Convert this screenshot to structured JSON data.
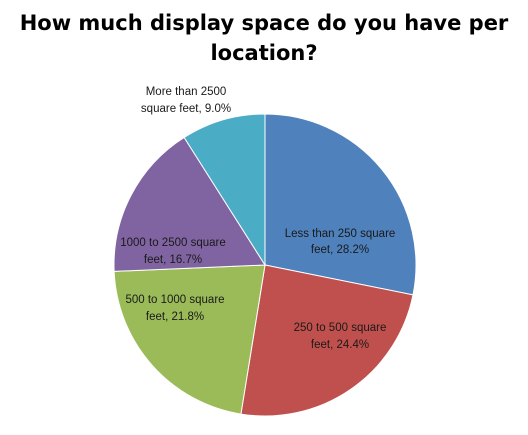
{
  "chart_data": {
    "type": "pie",
    "title": "How much display space do you have per\nlocation?",
    "slices": [
      {
        "name": "Less than 250 square feet",
        "value": 28.2,
        "label_lines": [
          "Less than 250 square",
          "feet, 28.2%"
        ],
        "color": "#4f81bd"
      },
      {
        "name": "250 to 500 square feet",
        "value": 24.4,
        "label_lines": [
          "250 to 500 square",
          "feet, 24.4%"
        ],
        "color": "#c0504d"
      },
      {
        "name": "500 to 1000 square feet",
        "value": 21.8,
        "label_lines": [
          "500 to 1000 square",
          "feet, 21.8%"
        ],
        "color": "#9bbb59"
      },
      {
        "name": "1000 to 2500 square feet",
        "value": 16.7,
        "label_lines": [
          "1000 to 2500 square",
          "feet, 16.7%"
        ],
        "color": "#8064a2"
      },
      {
        "name": "More than 2500 square feet",
        "value": 9.0,
        "label_lines": [
          "More than 2500",
          "square feet, 9.0%"
        ],
        "color": "#4bacc6"
      }
    ]
  }
}
